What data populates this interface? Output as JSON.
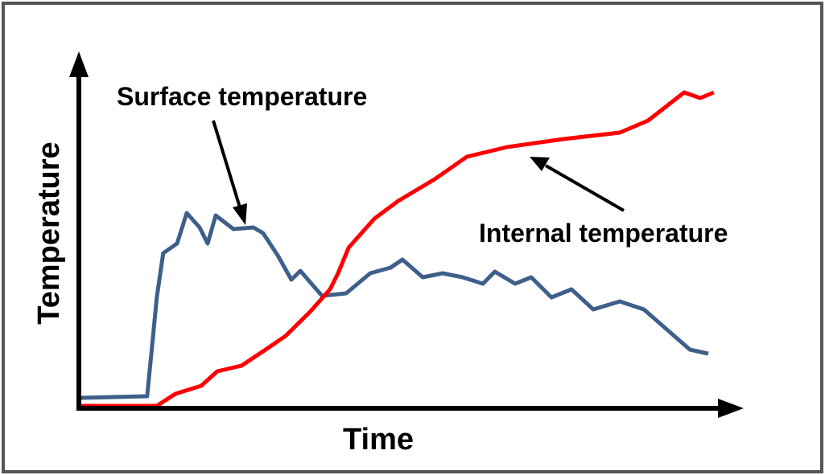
{
  "chart_data": {
    "type": "line",
    "xlabel": "Time",
    "ylabel": "Temperature",
    "xlim": [
      0,
      100
    ],
    "ylim": [
      0,
      100
    ],
    "series": [
      {
        "name": "Surface temperature",
        "color": "#3e5f8a",
        "x": [
          0.25,
          10.6,
          11.5,
          12.1,
          13.1,
          15.25,
          16.75,
          18.75,
          20,
          21.25,
          24,
          27.1,
          28.6,
          30.9,
          33,
          34.4,
          37.75,
          41.5,
          45.25,
          48.4,
          50.25,
          53.4,
          56.5,
          59.6,
          62.75,
          64.6,
          67.75,
          70.25,
          73.4,
          76.5,
          79.9,
          84,
          87.75,
          92.75,
          94.9,
          97.75
        ],
        "values": [
          3.25,
          3.75,
          22,
          34.5,
          48.25,
          51.25,
          60.75,
          56.25,
          51.25,
          60,
          55.75,
          56.25,
          54.5,
          47.5,
          40,
          42.75,
          35,
          35.75,
          42,
          43.75,
          46.25,
          40.75,
          42,
          40.75,
          38.75,
          42.5,
          38.75,
          40.75,
          34.5,
          37,
          30.75,
          33.25,
          30.75,
          22,
          18.25,
          17
        ]
      },
      {
        "name": "Internal temperature",
        "color": "#ff0000",
        "x": [
          0.25,
          12.1,
          15,
          19,
          21.5,
          25.25,
          29,
          32.1,
          35.9,
          39,
          40.25,
          41.9,
          45.9,
          49.6,
          55.25,
          60.25,
          66.5,
          75.25,
          84,
          88.4,
          94,
          96.5,
          98.6
        ],
        "values": [
          0.75,
          0.75,
          4.5,
          7,
          11.5,
          13.25,
          18.25,
          22.5,
          30,
          37,
          42,
          50,
          59,
          64.5,
          71.25,
          78.25,
          81.25,
          83.75,
          85.75,
          89.5,
          98.25,
          96.5,
          98.25
        ]
      }
    ]
  }
}
